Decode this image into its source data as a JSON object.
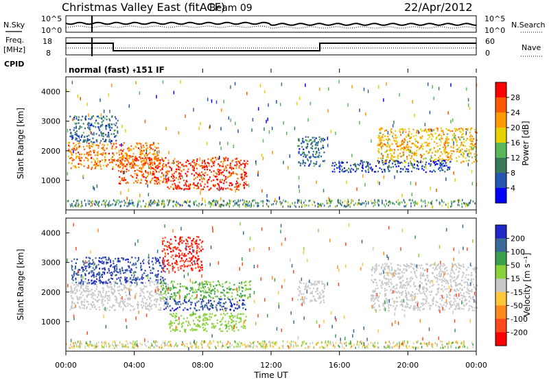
{
  "header": {
    "station": "Christmas Valley East (fitACF)",
    "beam": "Beam 09",
    "date": "22/Apr/2012"
  },
  "panels": {
    "nsky": {
      "label": "N.Sky",
      "right_label": "N.Search",
      "tick_top": "10^5",
      "tick_bottom": "10^0",
      "right_tick_top": "10^5",
      "right_tick_bottom": "10^0"
    },
    "freq": {
      "label_line1": "Freq.",
      "label_line2": "[MHz]",
      "right_label": "Nave",
      "left_ticks": [
        "18",
        "8"
      ],
      "right_ticks": [
        "60",
        "0"
      ]
    },
    "cpid": {
      "label": "CPID",
      "text": "normal (fast) -151 IF"
    }
  },
  "colorbars": {
    "power": {
      "label": "Power [dB]",
      "ticks": [
        "28",
        "24",
        "20",
        "16",
        "12",
        "8",
        "4"
      ],
      "colors": [
        "#ff0000",
        "#ff5a00",
        "#ff9a00",
        "#e6d200",
        "#5ab85a",
        "#3a7a5a",
        "#2456b4",
        "#0000ff"
      ]
    },
    "velocity": {
      "label": "Velocity [m s⁻¹]",
      "ticks": [
        "200",
        "100",
        "50",
        "15",
        "-15",
        "-50",
        "-100",
        "-200"
      ],
      "colors": [
        "#1e28c8",
        "#3a6a9a",
        "#3aa04a",
        "#8ad23a",
        "#c8c8c8",
        "#ffc83a",
        "#ff8a1e",
        "#ff4a1e",
        "#ff0000"
      ]
    }
  },
  "axes": {
    "ylabel": "Slant Range [km]",
    "xlabel": "Time UT",
    "yticks": [
      "4000",
      "3000",
      "2000",
      "1000"
    ],
    "xticks": [
      "00:00",
      "04:00",
      "08:00",
      "12:00",
      "16:00",
      "20:00",
      "00:00"
    ]
  },
  "chart_data": [
    {
      "type": "heatmap",
      "title": "Power [dB]",
      "x": [
        "00:00",
        "04:00",
        "08:00",
        "12:00",
        "16:00",
        "20:00",
        "00:00"
      ],
      "ylim": [
        0,
        4500
      ],
      "ylabel": "Slant Range [km]",
      "xlabel": "Time UT",
      "color_levels": [
        4,
        8,
        12,
        16,
        20,
        24,
        28
      ],
      "regions": [
        {
          "t_start": 0.1,
          "t_end": 5.5,
          "r_low": 1400,
          "r_high": 2300,
          "power": 24
        },
        {
          "t_start": 0.2,
          "t_end": 3.0,
          "r_low": 2300,
          "r_high": 3200,
          "power": 8
        },
        {
          "t_start": 3.0,
          "t_end": 6.0,
          "r_low": 900,
          "r_high": 1800,
          "power": 26
        },
        {
          "t_start": 5.8,
          "t_end": 10.6,
          "r_low": 700,
          "r_high": 1800,
          "power": 28
        },
        {
          "t_start": 13.5,
          "t_end": 15.1,
          "r_low": 1500,
          "r_high": 2500,
          "power": 8
        },
        {
          "t_start": 18.2,
          "t_end": 24.0,
          "r_low": 1600,
          "r_high": 2800,
          "power": 20
        },
        {
          "t_start": 15.5,
          "t_end": 22.5,
          "r_low": 1300,
          "r_high": 1700,
          "power": 6
        }
      ]
    },
    {
      "type": "heatmap",
      "title": "Velocity [m s-1]",
      "x": [
        "00:00",
        "04:00",
        "08:00",
        "12:00",
        "16:00",
        "20:00",
        "00:00"
      ],
      "ylim": [
        0,
        4500
      ],
      "ylabel": "Slant Range [km]",
      "xlabel": "Time UT",
      "color_levels": [
        200,
        100,
        50,
        15,
        -15,
        -50,
        -100,
        -200
      ],
      "regions": [
        {
          "t_start": 0.2,
          "t_end": 6.0,
          "r_low": 1400,
          "r_high": 2400,
          "velocity": 0
        },
        {
          "t_start": 0.3,
          "t_end": 5.8,
          "r_low": 2300,
          "r_high": 3200,
          "velocity": 200
        },
        {
          "t_start": 5.6,
          "t_end": 8.0,
          "r_low": 2700,
          "r_high": 3900,
          "velocity": -200
        },
        {
          "t_start": 5.5,
          "t_end": 10.8,
          "r_low": 1800,
          "r_high": 2400,
          "velocity": 50
        },
        {
          "t_start": 5.7,
          "t_end": 10.5,
          "r_low": 1400,
          "r_high": 1800,
          "velocity": 200
        },
        {
          "t_start": 6.0,
          "t_end": 10.5,
          "r_low": 700,
          "r_high": 1300,
          "velocity": 30
        },
        {
          "t_start": 13.5,
          "t_end": 15.1,
          "r_low": 1600,
          "r_high": 2400,
          "velocity": 0
        },
        {
          "t_start": 17.8,
          "t_end": 24.0,
          "r_low": 1400,
          "r_high": 3000,
          "velocity": 0
        }
      ]
    }
  ]
}
